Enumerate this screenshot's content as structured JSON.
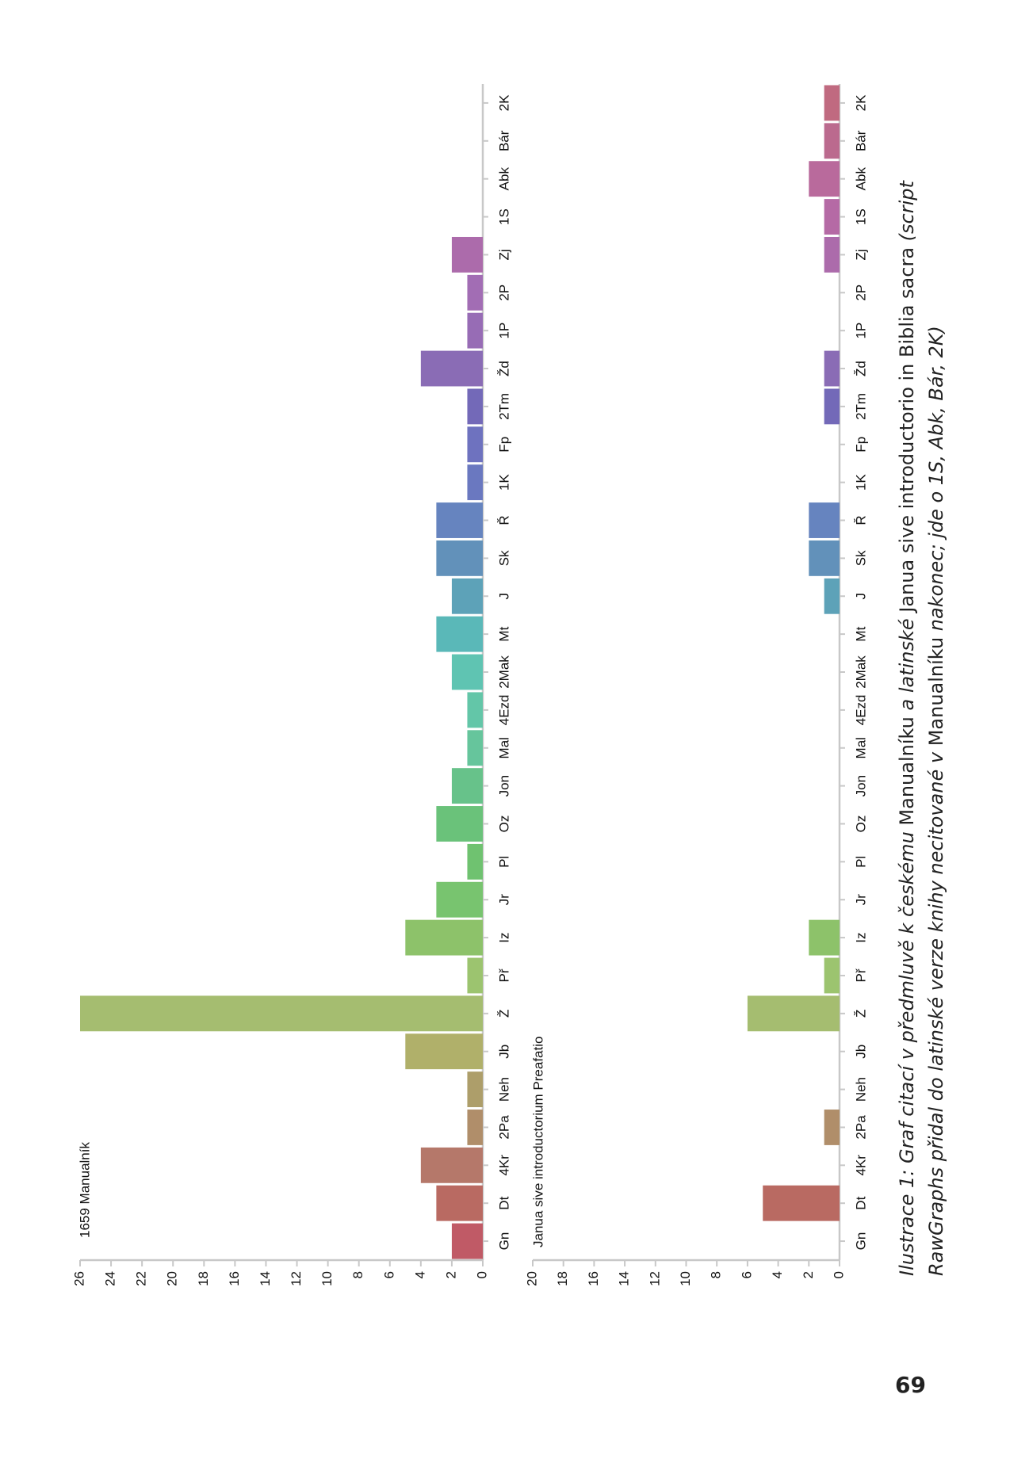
{
  "chart_data": [
    {
      "type": "bar",
      "title": "1659 Manualník",
      "categories": [
        "Gn",
        "Dt",
        "4Kr",
        "2Pa",
        "Neh",
        "Jb",
        "Ž",
        "Př",
        "Iz",
        "Jr",
        "Pl",
        "Oz",
        "Jon",
        "Mal",
        "4Ezd",
        "2Mak",
        "Mt",
        "J",
        "Sk",
        "Ř",
        "1K",
        "Fp",
        "2Tm",
        "Žd",
        "1P",
        "2P",
        "Zj",
        "1S",
        "Abk",
        "Bár",
        "2K"
      ],
      "values": [
        2,
        3,
        4,
        1,
        1,
        5,
        26,
        1,
        5,
        3,
        1,
        3,
        2,
        1,
        1,
        2,
        3,
        2,
        3,
        3,
        1,
        1,
        1,
        4,
        1,
        1,
        2,
        0,
        0,
        0,
        0
      ],
      "yticks": [
        0,
        2,
        4,
        6,
        8,
        10,
        12,
        14,
        16,
        18,
        20,
        22,
        24,
        26
      ],
      "ylim": [
        0,
        26
      ],
      "grid": false
    },
    {
      "type": "bar",
      "title": "Janua sive introductorium Preafatio",
      "categories": [
        "Gn",
        "Dt",
        "4Kr",
        "2Pa",
        "Neh",
        "Jb",
        "Ž",
        "Př",
        "Iz",
        "Jr",
        "Pl",
        "Oz",
        "Jon",
        "Mal",
        "4Ezd",
        "2Mak",
        "Mt",
        "J",
        "Sk",
        "Ř",
        "1K",
        "Fp",
        "2Tm",
        "Žd",
        "1P",
        "2P",
        "Zj",
        "1S",
        "Abk",
        "Bár",
        "2K"
      ],
      "values": [
        0,
        5,
        0,
        1,
        0,
        0,
        6,
        1,
        2,
        0,
        0,
        0,
        0,
        0,
        0,
        0,
        0,
        1,
        2,
        2,
        0,
        0,
        1,
        1,
        0,
        0,
        1,
        1,
        2,
        1,
        1
      ],
      "yticks": [
        0,
        2,
        4,
        6,
        8,
        10,
        12,
        14,
        16,
        18,
        20
      ],
      "ylim": [
        0,
        20
      ],
      "grid": false
    }
  ],
  "colors": [
    "#c05a66",
    "#b96a62",
    "#b5786a",
    "#b08e6a",
    "#ad9e6a",
    "#b0b06a",
    "#a5bd70",
    "#9cc46f",
    "#8dc26a",
    "#78c46f",
    "#6fc270",
    "#6ac27a",
    "#67c28a",
    "#66c59c",
    "#63c6a8",
    "#5fc4b2",
    "#5ab8b8",
    "#5da2b8",
    "#6291ba",
    "#6684bf",
    "#6a78c0",
    "#6e72bf",
    "#7369b8",
    "#8a6cb5",
    "#976cb5",
    "#a26db4",
    "#ac6bab",
    "#b56aa5",
    "#b96a9c",
    "#bb6a8e",
    "#c06a80"
  ],
  "caption": {
    "part1": "Ilustrace 1: Graf citací v předmluvě k českému",
    "part2": " Manualníku ",
    "part3": "a latinské",
    "part4": " Janua sive introductorio in Biblia sacra ",
    "part5": "(script RawGraphs přidal do latinské verze knihy necitované v",
    "part6": " Manualníku ",
    "part7": "nakonec; jde o 1S, Abk, Bár, 2K)"
  },
  "page_number": "69"
}
